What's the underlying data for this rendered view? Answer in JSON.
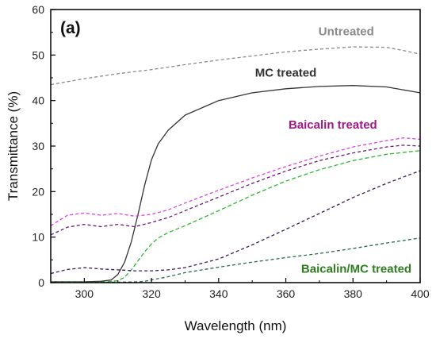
{
  "chart_data": {
    "type": "line",
    "panel_label": "(a)",
    "xlabel": "Wavelength (nm)",
    "ylabel": "Transmittance (%)",
    "xlim": [
      290,
      400
    ],
    "ylim": [
      0,
      60
    ],
    "xticks": [
      300,
      320,
      340,
      360,
      380,
      400
    ],
    "yticks": [
      0,
      10,
      20,
      30,
      40,
      50,
      60
    ],
    "grid": false,
    "annotations": [
      {
        "text": "Untreated",
        "x": 378,
        "y": 54.3,
        "color": "#8a8a8a"
      },
      {
        "text": "MC treated",
        "x": 360,
        "y": 45.3,
        "color": "#333333"
      },
      {
        "text": "Baicalin treated",
        "x": 374,
        "y": 33.8,
        "color": "#a0198a"
      },
      {
        "text": "Baicalin/MC treated",
        "x": 381,
        "y": 2.2,
        "color": "#2e7d1f"
      }
    ],
    "series": [
      {
        "color": "#8a8a8a",
        "dash": "4,3",
        "x": [
          290,
          300,
          310,
          320,
          330,
          340,
          350,
          360,
          370,
          380,
          390,
          395,
          400
        ],
        "y": [
          43.5,
          44.8,
          45.9,
          46.8,
          47.9,
          48.9,
          49.8,
          50.7,
          51.3,
          51.8,
          51.7,
          51.0,
          50.2
        ]
      },
      {
        "color": "#333333",
        "dash": "",
        "x": [
          290,
          300,
          305,
          308,
          310,
          312,
          314,
          316,
          318,
          320,
          322,
          325,
          330,
          340,
          350,
          360,
          370,
          380,
          390,
          400
        ],
        "y": [
          0.2,
          0.2,
          0.3,
          0.6,
          1.8,
          4.5,
          9.0,
          15.0,
          21.5,
          27.0,
          30.5,
          33.5,
          36.8,
          40.0,
          41.7,
          42.6,
          43.1,
          43.3,
          43.0,
          41.7
        ]
      },
      {
        "color": "#e040e0",
        "dash": "4,3",
        "x": [
          290,
          295,
          300,
          305,
          310,
          315,
          320,
          325,
          330,
          340,
          350,
          360,
          370,
          380,
          390,
          395,
          400
        ],
        "y": [
          12.5,
          14.8,
          15.3,
          14.8,
          15.2,
          14.6,
          15.0,
          16.0,
          17.5,
          20.3,
          23.0,
          25.5,
          27.8,
          29.8,
          31.2,
          31.8,
          31.5
        ]
      },
      {
        "color": "#6a1a78",
        "dash": "4,3",
        "x": [
          290,
          295,
          300,
          305,
          310,
          315,
          320,
          325,
          330,
          340,
          350,
          360,
          370,
          380,
          390,
          395,
          400
        ],
        "y": [
          10.5,
          12.2,
          12.8,
          12.3,
          12.8,
          12.3,
          13.2,
          14.3,
          15.8,
          18.8,
          21.8,
          24.5,
          26.8,
          28.5,
          29.8,
          30.2,
          30.0
        ]
      },
      {
        "color": "#2db82d",
        "dash": "5,3",
        "x": [
          290,
          305,
          310,
          312,
          314,
          316,
          318,
          320,
          322,
          325,
          330,
          340,
          350,
          360,
          370,
          380,
          390,
          400
        ],
        "y": [
          0.1,
          0.1,
          0.4,
          1.2,
          2.8,
          4.8,
          6.8,
          8.5,
          9.8,
          11.0,
          12.5,
          15.8,
          19.2,
          22.3,
          24.8,
          26.8,
          28.2,
          29.0
        ]
      },
      {
        "color": "#3a1a5a",
        "dash": "4,3",
        "x": [
          290,
          295,
          300,
          305,
          310,
          315,
          320,
          325,
          330,
          340,
          350,
          360,
          370,
          380,
          390,
          400
        ],
        "y": [
          2.0,
          2.9,
          3.3,
          3.0,
          2.8,
          2.6,
          2.6,
          2.8,
          3.3,
          5.2,
          8.3,
          11.7,
          15.2,
          18.7,
          21.8,
          24.6
        ]
      },
      {
        "color": "#2a6a4a",
        "dash": "4,3",
        "x": [
          290,
          300,
          310,
          315,
          318,
          320,
          325,
          330,
          340,
          350,
          360,
          370,
          380,
          390,
          400
        ],
        "y": [
          0.1,
          0.1,
          0.1,
          0.15,
          0.3,
          0.6,
          1.3,
          2.2,
          3.4,
          4.5,
          5.5,
          6.4,
          7.5,
          8.7,
          9.8
        ]
      }
    ]
  }
}
